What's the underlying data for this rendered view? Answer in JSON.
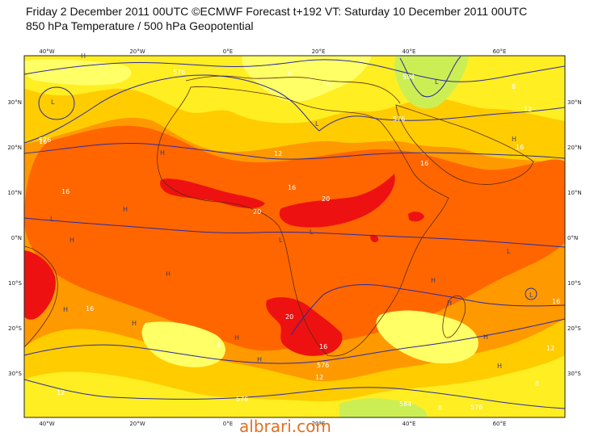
{
  "header": {
    "line1": "Friday 2 December 2011 00UTC ©ECMWF Forecast t+192 VT: Saturday 10 December 2011 00UTC",
    "line2": "850 hPa Temperature / 500 hPa Geopotential"
  },
  "watermark": "albrari.com",
  "axis": {
    "lon_top": [
      "40°W",
      "20°W",
      "0°E",
      "20°E",
      "40°E",
      "60°E"
    ],
    "lon_bottom": [
      "40°W",
      "20°W",
      "0°E",
      "20°E",
      "40°E",
      "60°E"
    ],
    "lat": [
      "30°N",
      "20°N",
      "10°N",
      "0°N",
      "10°S",
      "20°S",
      "30°S"
    ]
  },
  "temperature_labels": [
    "8",
    "8",
    "8",
    "8",
    "8",
    "12",
    "12",
    "12",
    "12",
    "16",
    "16",
    "16",
    "16",
    "16",
    "16",
    "16",
    "16",
    "20",
    "20",
    "20",
    "12",
    "8"
  ],
  "geopotential_labels": [
    "576",
    "576",
    "576",
    "576",
    "584",
    "576",
    "584",
    "576"
  ],
  "pressure_markers": [
    "L",
    "L",
    "L",
    "L",
    "L",
    "L",
    "L",
    "L",
    "H",
    "H",
    "H",
    "H",
    "H",
    "H",
    "H",
    "H",
    "H",
    "H",
    "H",
    "H",
    "H",
    "H"
  ],
  "colors": {
    "yellow_light": "#ffff66",
    "yellow": "#ffee22",
    "amber": "#ffcc00",
    "orange_light": "#ff9900",
    "orange": "#ff6600",
    "red": "#ee1111",
    "green": "#ccee55",
    "contour": "#2a2aa0",
    "coast": "#5a2a10"
  }
}
